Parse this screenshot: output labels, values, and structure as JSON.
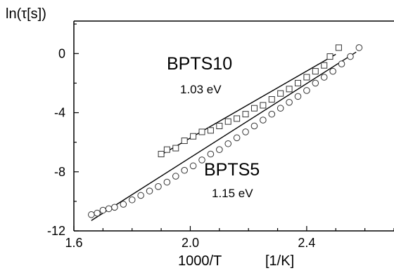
{
  "chart_data": {
    "type": "scatter",
    "title": "",
    "xlabel": "1000/T",
    "xunit": "[1/K]",
    "ylabel": "ln(τ[s])",
    "xlim": [
      1.6,
      2.7
    ],
    "ylim": [
      -12,
      2.2
    ],
    "xticks": [
      1.6,
      2.0,
      2.4
    ],
    "yticks": [
      0,
      -4,
      -8,
      -12
    ],
    "xtick_labels": [
      "1.6",
      "2.0",
      "2.4"
    ],
    "ytick_labels": [
      "0",
      "-4",
      "-8",
      "-12"
    ],
    "grid": false,
    "series": [
      {
        "name": "BPTS10",
        "marker": "square",
        "x": [
          1.9,
          1.92,
          1.95,
          1.98,
          2.01,
          2.04,
          2.07,
          2.1,
          2.13,
          2.16,
          2.19,
          2.22,
          2.25,
          2.28,
          2.31,
          2.34,
          2.37,
          2.4,
          2.43,
          2.46,
          2.48,
          2.51
        ],
        "y": [
          -6.8,
          -6.5,
          -6.4,
          -5.9,
          -5.6,
          -5.3,
          -5.2,
          -4.9,
          -4.6,
          -4.4,
          -4.1,
          -3.7,
          -3.5,
          -3.1,
          -2.7,
          -2.4,
          -2.0,
          -1.6,
          -1.2,
          -0.8,
          -0.2,
          0.4
        ],
        "fit": {
          "x": [
            1.9,
            2.5
          ],
          "y": [
            -6.85,
            -0.05
          ]
        },
        "label": "BPTS10",
        "energy": "1.03 eV"
      },
      {
        "name": "BPTS5",
        "marker": "circle",
        "x": [
          1.66,
          1.68,
          1.7,
          1.72,
          1.74,
          1.77,
          1.8,
          1.83,
          1.86,
          1.89,
          1.92,
          1.95,
          1.98,
          2.01,
          2.04,
          2.07,
          2.1,
          2.13,
          2.16,
          2.19,
          2.22,
          2.25,
          2.28,
          2.31,
          2.34,
          2.37,
          2.4,
          2.43,
          2.46,
          2.49,
          2.52,
          2.55,
          2.58
        ],
        "y": [
          -10.9,
          -10.8,
          -10.6,
          -10.5,
          -10.4,
          -10.2,
          -9.9,
          -9.6,
          -9.3,
          -9.0,
          -8.7,
          -8.3,
          -7.9,
          -7.6,
          -7.2,
          -6.8,
          -6.5,
          -6.1,
          -5.7,
          -5.3,
          -4.9,
          -4.5,
          -4.1,
          -3.7,
          -3.3,
          -2.9,
          -2.5,
          -2.0,
          -1.6,
          -1.2,
          -0.7,
          -0.2,
          0.4
        ],
        "fit": {
          "x": [
            1.66,
            2.57
          ],
          "y": [
            -11.3,
            0.1
          ]
        },
        "label": "BPTS5",
        "energy": "1.15 eV"
      }
    ]
  }
}
